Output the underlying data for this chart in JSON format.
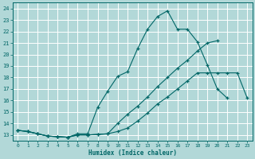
{
  "xlabel": "Humidex (Indice chaleur)",
  "bg_color": "#b2d8d8",
  "grid_color": "#ffffff",
  "line_color": "#006666",
  "ylim": [
    12.5,
    24.5
  ],
  "xlim": [
    -0.5,
    23.5
  ],
  "yticks": [
    13,
    14,
    15,
    16,
    17,
    18,
    19,
    20,
    21,
    22,
    23,
    24
  ],
  "xticks": [
    0,
    1,
    2,
    3,
    4,
    5,
    6,
    7,
    8,
    9,
    10,
    11,
    12,
    13,
    14,
    15,
    16,
    17,
    18,
    19,
    20,
    21,
    22,
    23
  ],
  "series1_x": [
    0,
    1,
    2,
    3,
    4,
    5,
    6,
    7,
    8,
    9,
    10,
    11,
    12,
    13,
    14,
    15,
    16,
    17,
    18,
    19,
    20,
    21
  ],
  "series1_y": [
    13.4,
    13.3,
    13.1,
    12.9,
    12.85,
    12.8,
    13.1,
    13.1,
    15.4,
    16.8,
    18.1,
    18.5,
    20.5,
    22.2,
    23.3,
    23.8,
    22.2,
    22.2,
    21.1,
    19.1,
    17.0,
    16.2
  ],
  "series2_x": [
    0,
    1,
    2,
    3,
    4,
    5,
    6,
    7,
    8,
    9,
    10,
    11,
    12,
    13,
    14,
    15,
    16,
    17,
    18,
    19,
    20,
    21,
    22,
    23
  ],
  "series2_y": [
    13.4,
    13.3,
    13.1,
    12.9,
    12.85,
    12.8,
    13.0,
    13.0,
    13.05,
    13.1,
    13.3,
    13.6,
    14.2,
    14.9,
    15.7,
    16.3,
    17.0,
    17.7,
    18.4,
    18.4,
    18.4,
    18.4,
    18.4,
    16.2
  ],
  "series3_x": [
    0,
    1,
    2,
    3,
    4,
    5,
    6,
    7,
    8,
    9,
    10,
    11,
    12,
    13,
    14,
    15,
    16,
    17,
    18,
    19,
    20
  ],
  "series3_y": [
    13.4,
    13.3,
    13.1,
    12.9,
    12.85,
    12.8,
    13.0,
    13.0,
    13.05,
    13.1,
    14.0,
    14.8,
    15.5,
    16.3,
    17.2,
    18.0,
    18.8,
    19.5,
    20.3,
    21.0,
    21.2
  ]
}
